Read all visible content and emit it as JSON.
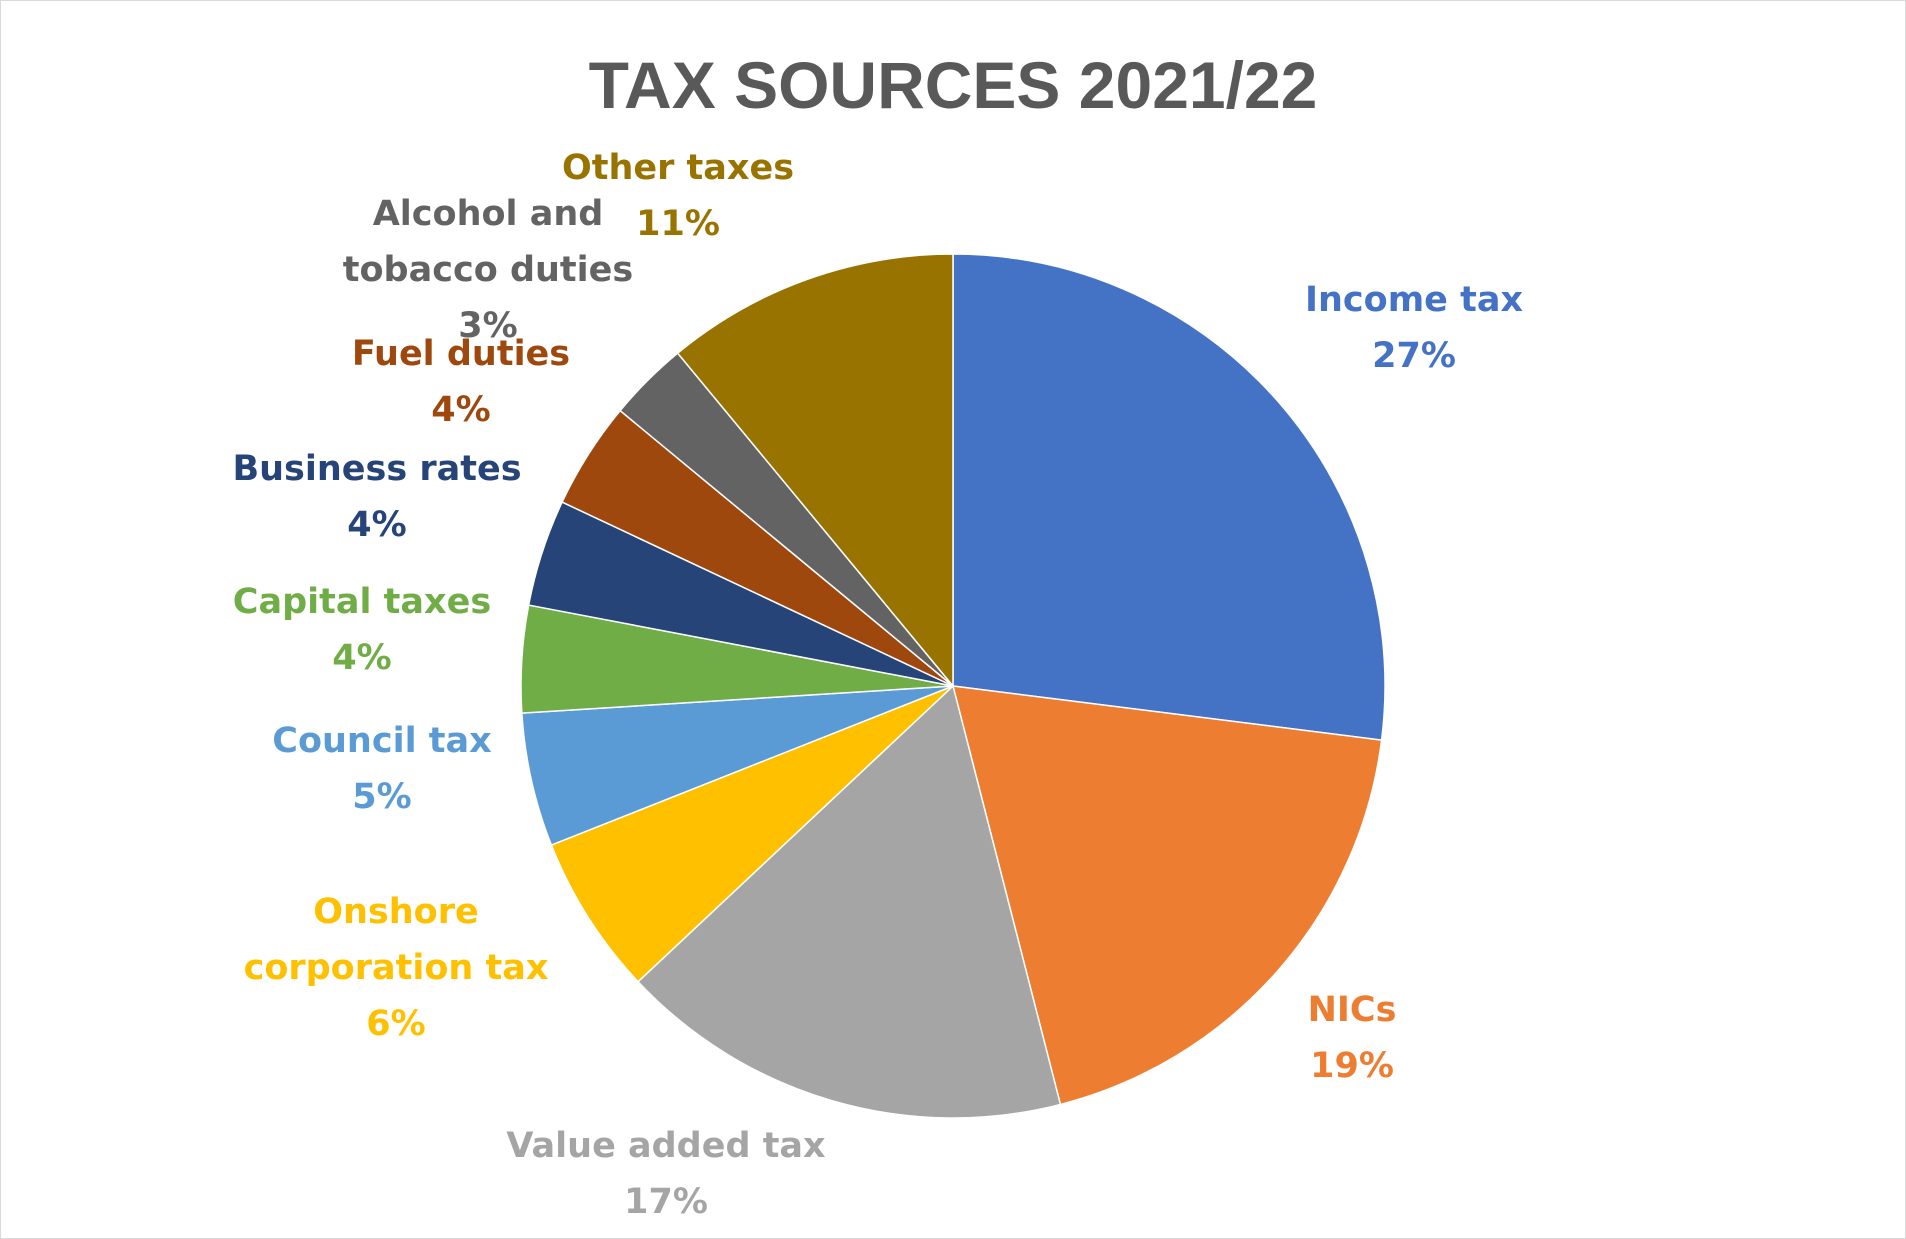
{
  "chart_data": {
    "type": "pie",
    "title": "TAX SOURCES 2021/22",
    "slices": [
      {
        "name": "Income tax",
        "value": 27,
        "label": [
          "Income tax",
          "27%"
        ],
        "color": "#4472C4"
      },
      {
        "name": "NICs",
        "value": 19,
        "label": [
          "NICs",
          "19%"
        ],
        "color": "#ED7D31"
      },
      {
        "name": "Value added tax",
        "value": 17,
        "label": [
          "Value added tax",
          "17%"
        ],
        "color": "#A5A5A5"
      },
      {
        "name": "Onshore corporation tax",
        "value": 6,
        "label": [
          "Onshore",
          "corporation tax",
          "6%"
        ],
        "color": "#FFC000"
      },
      {
        "name": "Council tax",
        "value": 5,
        "label": [
          "Council tax",
          "5%"
        ],
        "color": "#5B9BD5"
      },
      {
        "name": "Capital taxes",
        "value": 4,
        "label": [
          "Capital taxes",
          "4%"
        ],
        "color": "#70AD47"
      },
      {
        "name": "Business rates",
        "value": 4,
        "label": [
          "Business rates",
          "4%"
        ],
        "color": "#264478"
      },
      {
        "name": "Fuel duties",
        "value": 4,
        "label": [
          "Fuel duties",
          "4%"
        ],
        "color": "#9E480E"
      },
      {
        "name": "Alcohol and tobacco duties",
        "value": 3,
        "label": [
          "Alcohol and",
          "tobacco duties",
          "3%"
        ],
        "color": "#636363"
      },
      {
        "name": "Other taxes",
        "value": 11,
        "label": [
          "Other taxes",
          "11%"
        ],
        "color": "#997300"
      }
    ],
    "start_angle": "12 o'clock",
    "direction": "clockwise",
    "legend": "none",
    "data_labels": "outside-end"
  }
}
